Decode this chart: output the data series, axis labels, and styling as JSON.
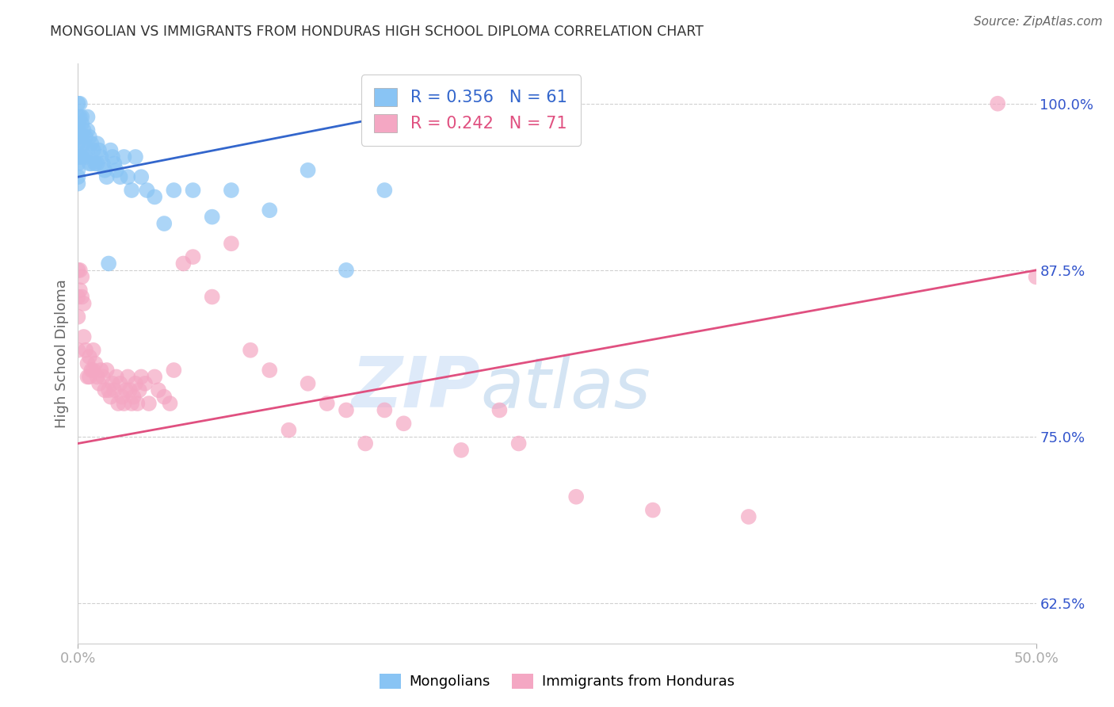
{
  "title": "MONGOLIAN VS IMMIGRANTS FROM HONDURAS HIGH SCHOOL DIPLOMA CORRELATION CHART",
  "source": "Source: ZipAtlas.com",
  "ylabel": "High School Diploma",
  "xlim": [
    0.0,
    0.5
  ],
  "ylim": [
    0.595,
    1.03
  ],
  "xtick_labels": [
    "0.0%",
    "50.0%"
  ],
  "xtick_positions": [
    0.0,
    0.5
  ],
  "ytick_labels": [
    "62.5%",
    "75.0%",
    "87.5%",
    "100.0%"
  ],
  "ytick_positions": [
    0.625,
    0.75,
    0.875,
    1.0
  ],
  "legend_labels": [
    "Mongolians",
    "Immigrants from Honduras"
  ],
  "blue_color": "#89C4F4",
  "pink_color": "#F4A7C3",
  "blue_line_color": "#3366CC",
  "pink_line_color": "#E05080",
  "R_blue": 0.356,
  "N_blue": 61,
  "R_pink": 0.242,
  "N_pink": 71,
  "blue_scatter_x": [
    0.0,
    0.0,
    0.0,
    0.0,
    0.0,
    0.0,
    0.0,
    0.0,
    0.0,
    0.0,
    0.0,
    0.0,
    0.001,
    0.001,
    0.001,
    0.001,
    0.002,
    0.002,
    0.002,
    0.003,
    0.003,
    0.004,
    0.004,
    0.005,
    0.005,
    0.005,
    0.006,
    0.006,
    0.007,
    0.007,
    0.008,
    0.009,
    0.01,
    0.01,
    0.011,
    0.012,
    0.013,
    0.014,
    0.015,
    0.016,
    0.017,
    0.018,
    0.019,
    0.02,
    0.022,
    0.024,
    0.026,
    0.028,
    0.03,
    0.033,
    0.036,
    0.04,
    0.045,
    0.05,
    0.06,
    0.07,
    0.08,
    0.1,
    0.12,
    0.14,
    0.16
  ],
  "blue_scatter_y": [
    1.0,
    0.99,
    0.985,
    0.98,
    0.975,
    0.97,
    0.965,
    0.96,
    0.955,
    0.95,
    0.945,
    0.94,
    1.0,
    0.99,
    0.975,
    0.96,
    0.99,
    0.985,
    0.96,
    0.98,
    0.97,
    0.975,
    0.96,
    0.99,
    0.98,
    0.965,
    0.975,
    0.955,
    0.97,
    0.955,
    0.965,
    0.955,
    0.97,
    0.955,
    0.965,
    0.96,
    0.955,
    0.95,
    0.945,
    0.88,
    0.965,
    0.96,
    0.955,
    0.95,
    0.945,
    0.96,
    0.945,
    0.935,
    0.96,
    0.945,
    0.935,
    0.93,
    0.91,
    0.935,
    0.935,
    0.915,
    0.935,
    0.92,
    0.95,
    0.875,
    0.935
  ],
  "pink_scatter_x": [
    0.0,
    0.0,
    0.0,
    0.0,
    0.001,
    0.001,
    0.002,
    0.002,
    0.003,
    0.003,
    0.004,
    0.005,
    0.005,
    0.006,
    0.006,
    0.007,
    0.008,
    0.008,
    0.009,
    0.01,
    0.011,
    0.012,
    0.013,
    0.014,
    0.015,
    0.016,
    0.017,
    0.018,
    0.019,
    0.02,
    0.021,
    0.022,
    0.023,
    0.024,
    0.025,
    0.026,
    0.027,
    0.028,
    0.029,
    0.03,
    0.031,
    0.032,
    0.033,
    0.035,
    0.037,
    0.04,
    0.042,
    0.045,
    0.048,
    0.05,
    0.055,
    0.06,
    0.07,
    0.08,
    0.09,
    0.1,
    0.11,
    0.13,
    0.15,
    0.17,
    0.2,
    0.23,
    0.12,
    0.14,
    0.16,
    0.22,
    0.26,
    0.3,
    0.35,
    0.48,
    0.5
  ],
  "pink_scatter_y": [
    0.875,
    0.855,
    0.84,
    0.815,
    0.875,
    0.86,
    0.87,
    0.855,
    0.85,
    0.825,
    0.815,
    0.805,
    0.795,
    0.81,
    0.795,
    0.8,
    0.815,
    0.8,
    0.805,
    0.795,
    0.79,
    0.8,
    0.795,
    0.785,
    0.8,
    0.785,
    0.78,
    0.79,
    0.785,
    0.795,
    0.775,
    0.79,
    0.78,
    0.775,
    0.785,
    0.795,
    0.785,
    0.775,
    0.78,
    0.79,
    0.775,
    0.785,
    0.795,
    0.79,
    0.775,
    0.795,
    0.785,
    0.78,
    0.775,
    0.8,
    0.88,
    0.885,
    0.855,
    0.895,
    0.815,
    0.8,
    0.755,
    0.775,
    0.745,
    0.76,
    0.74,
    0.745,
    0.79,
    0.77,
    0.77,
    0.77,
    0.705,
    0.695,
    0.69,
    1.0,
    0.87
  ],
  "blue_line_x": [
    0.0,
    0.16
  ],
  "blue_line_y": [
    0.945,
    0.99
  ],
  "pink_line_x": [
    0.0,
    0.5
  ],
  "pink_line_y": [
    0.745,
    0.875
  ],
  "watermark_zip": "ZIP",
  "watermark_atlas": "atlas",
  "background_color": "#ffffff",
  "grid_color": "#d0d0d0",
  "title_color": "#333333",
  "axis_color": "#3355CC",
  "ylabel_color": "#666666"
}
